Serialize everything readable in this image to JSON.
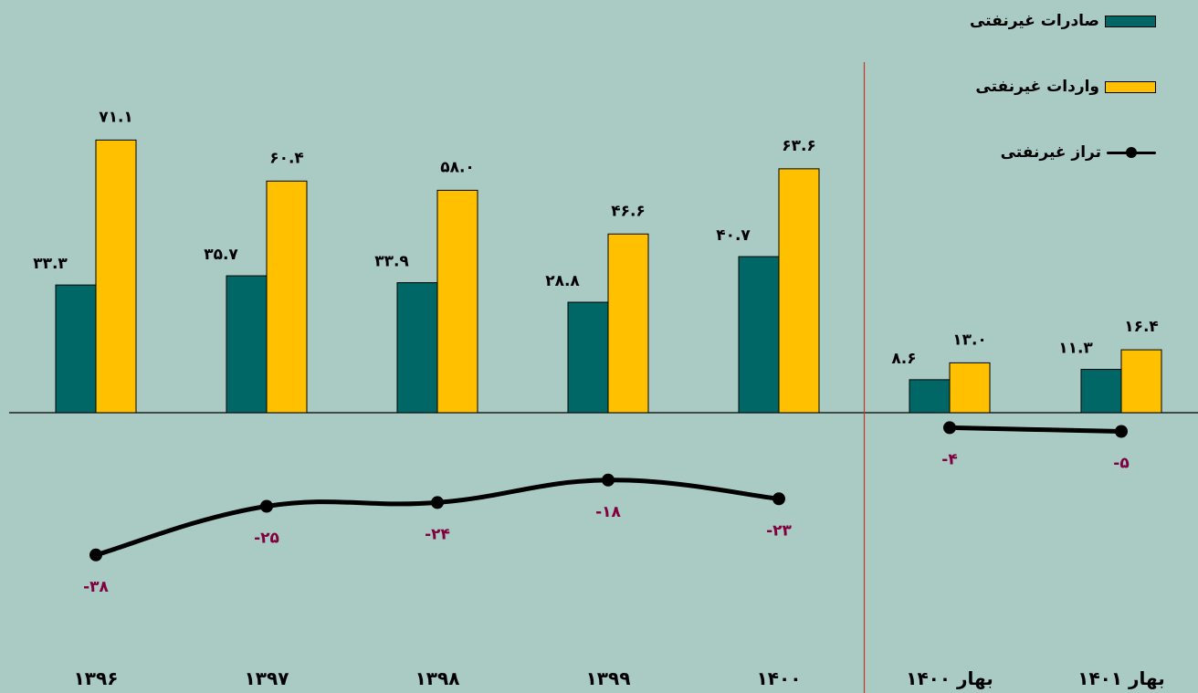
{
  "chart_data": {
    "type": "bar",
    "categories": [
      "۱۳۹۶",
      "۱۳۹۷",
      "۱۳۹۸",
      "۱۳۹۹",
      "۱۴۰۰",
      "بهار ۱۴۰۰",
      "بهار ۱۴۰۱"
    ],
    "series": [
      {
        "name": "صادرات غیرنفتی",
        "type": "bar",
        "color": "#006666",
        "values": [
          33.3,
          35.7,
          33.9,
          28.8,
          40.7,
          8.6,
          11.3
        ],
        "labels": [
          "۳۳.۳",
          "۳۵.۷",
          "۳۳.۹",
          "۲۸.۸",
          "۴۰.۷",
          "۸.۶",
          "۱۱.۳"
        ]
      },
      {
        "name": "واردات غیرنفتی",
        "type": "bar",
        "color": "#ffc000",
        "values": [
          71.1,
          60.4,
          58.0,
          46.6,
          63.6,
          13.0,
          16.4
        ],
        "labels": [
          "۷۱.۱",
          "۶۰.۴",
          "۵۸.۰",
          "۴۶.۶",
          "۶۳.۶",
          "۱۳.۰",
          "۱۶.۴"
        ]
      },
      {
        "name": "تراز غیرنفتی",
        "type": "line",
        "color": "#000000",
        "values": [
          -38,
          -25,
          -24,
          -18,
          -23,
          -4,
          -5
        ],
        "labels": [
          "-۳۸",
          "-۲۵",
          "-۲۴",
          "-۱۸",
          "-۲۳",
          "-۴",
          "-۵"
        ]
      }
    ],
    "ylim": [
      -45,
      75
    ],
    "grid": false,
    "legend_position": "top-right",
    "divider_after_category": 4,
    "label_colors": {
      "bar": "#000000",
      "line": "#800040"
    }
  }
}
